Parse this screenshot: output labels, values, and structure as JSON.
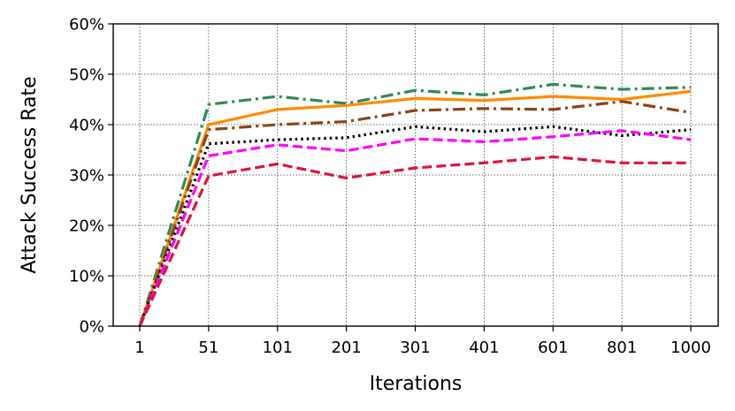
{
  "chart_data": {
    "type": "line",
    "xlabel": "Iterations",
    "ylabel": "Attack Success Rate",
    "categories": [
      "1",
      "51",
      "101",
      "201",
      "301",
      "401",
      "601",
      "801",
      "1000"
    ],
    "ylim": [
      0,
      60
    ],
    "yticks": [
      "0%",
      "10%",
      "20%",
      "30%",
      "40%",
      "50%",
      "60%"
    ],
    "grid": true,
    "series": [
      {
        "values": [
          0,
          44.0,
          45.6,
          44.2,
          46.8,
          45.9,
          48.0,
          47.0,
          47.4
        ],
        "color": "#2e8b57",
        "style": "dashdot"
      },
      {
        "values": [
          0,
          40.0,
          43.0,
          43.8,
          45.2,
          44.8,
          45.6,
          45.0,
          46.6
        ],
        "color": "#ff8c00",
        "style": "solid"
      },
      {
        "values": [
          0,
          39.0,
          40.0,
          40.6,
          42.8,
          43.2,
          43.0,
          44.6,
          42.4
        ],
        "color": "#8b4513",
        "style": "dashdot"
      },
      {
        "values": [
          0,
          36.2,
          37.0,
          37.4,
          39.6,
          38.6,
          39.6,
          37.8,
          39.0
        ],
        "color": "#000000",
        "style": "dotted"
      },
      {
        "values": [
          0,
          33.8,
          36.0,
          34.8,
          37.2,
          36.6,
          37.6,
          38.8,
          37.0
        ],
        "color": "#ff00ff",
        "style": "dashed"
      },
      {
        "values": [
          0,
          29.8,
          32.2,
          29.4,
          31.4,
          32.4,
          33.6,
          32.4,
          32.4
        ],
        "color": "#dc143c",
        "style": "dashed"
      }
    ]
  }
}
